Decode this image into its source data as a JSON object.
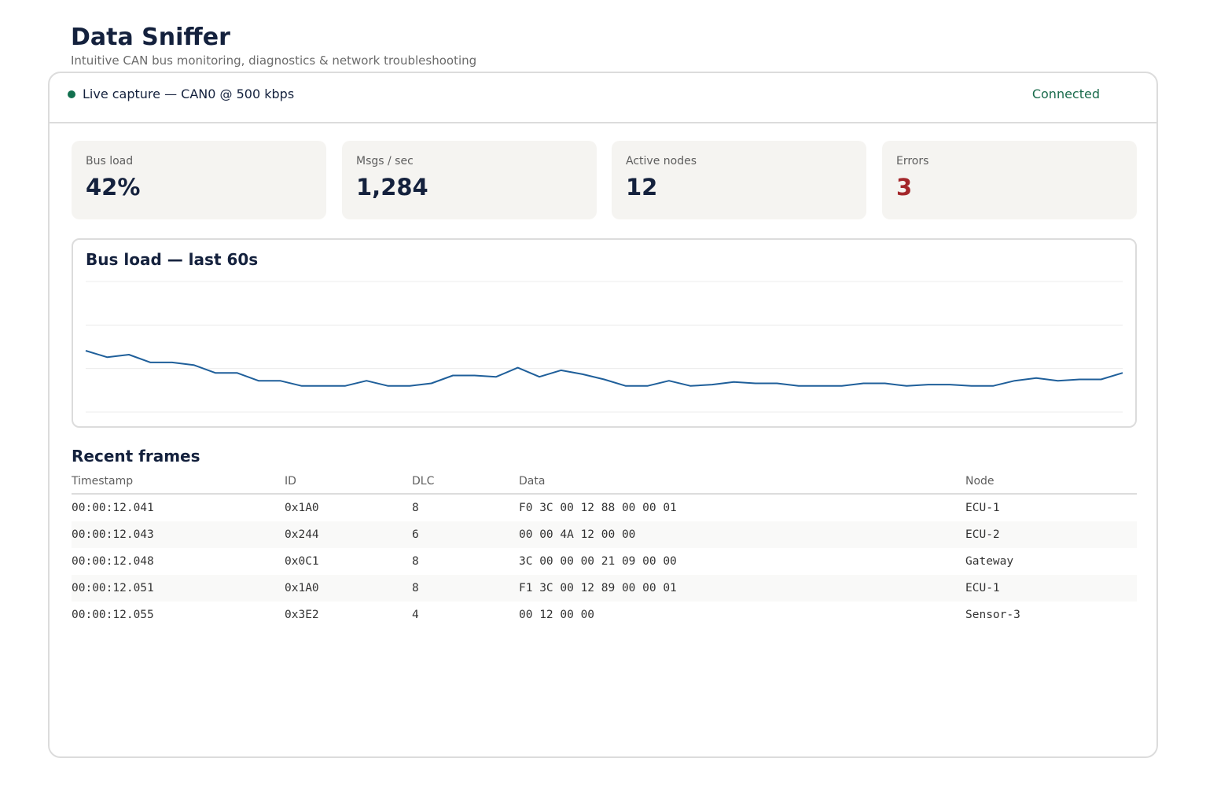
{
  "header": {
    "title": "Data Sniffer",
    "subtitle": "Intuitive CAN bus monitoring, diagnostics & network troubleshooting"
  },
  "capture": {
    "label": "Live capture — CAN0 @ 500 kbps",
    "status": "Connected",
    "status_color": "#1a6b4c"
  },
  "stats": [
    {
      "label": "Bus load",
      "value": "42%"
    },
    {
      "label": "Msgs / sec",
      "value": "1,284"
    },
    {
      "label": "Active nodes",
      "value": "12"
    },
    {
      "label": "Errors",
      "value": "3",
      "color": "#a3262a"
    }
  ],
  "chart": {
    "title": "Bus load — last 60s"
  },
  "chart_data": {
    "type": "line",
    "title": "Bus load — last 60s",
    "xlabel": "",
    "ylabel": "",
    "ylim": [
      0,
      100
    ],
    "grid": true,
    "line_color": "#1f5f9a",
    "series": [
      {
        "values": [
          47,
          42,
          44,
          38,
          38,
          36,
          30,
          30,
          24,
          24,
          20,
          20,
          20,
          24,
          20,
          20,
          22,
          28,
          28,
          27,
          34,
          27,
          32,
          29,
          25,
          20,
          20,
          24,
          20,
          21,
          23,
          22,
          22,
          20,
          20,
          20,
          22,
          22,
          20,
          21,
          21,
          20,
          20,
          24,
          26,
          24,
          25,
          25,
          30
        ]
      }
    ]
  },
  "frames": {
    "title": "Recent frames",
    "columns": [
      "Timestamp",
      "ID",
      "DLC",
      "Data",
      "Node"
    ],
    "rows": [
      [
        "00:00:12.041",
        "0x1A0",
        "8",
        "F0 3C 00 12 88 00 00 01",
        "ECU-1"
      ],
      [
        "00:00:12.043",
        "0x244",
        "6",
        "00 00 4A 12 00 00",
        "ECU-2"
      ],
      [
        "00:00:12.048",
        "0x0C1",
        "8",
        "3C 00 00 00 21 09 00 00",
        "Gateway"
      ],
      [
        "00:00:12.051",
        "0x1A0",
        "8",
        "F1 3C 00 12 89 00 00 01",
        "ECU-1"
      ],
      [
        "00:00:12.055",
        "0x3E2",
        "4",
        "00 12 00 00",
        "Sensor-3"
      ]
    ]
  }
}
